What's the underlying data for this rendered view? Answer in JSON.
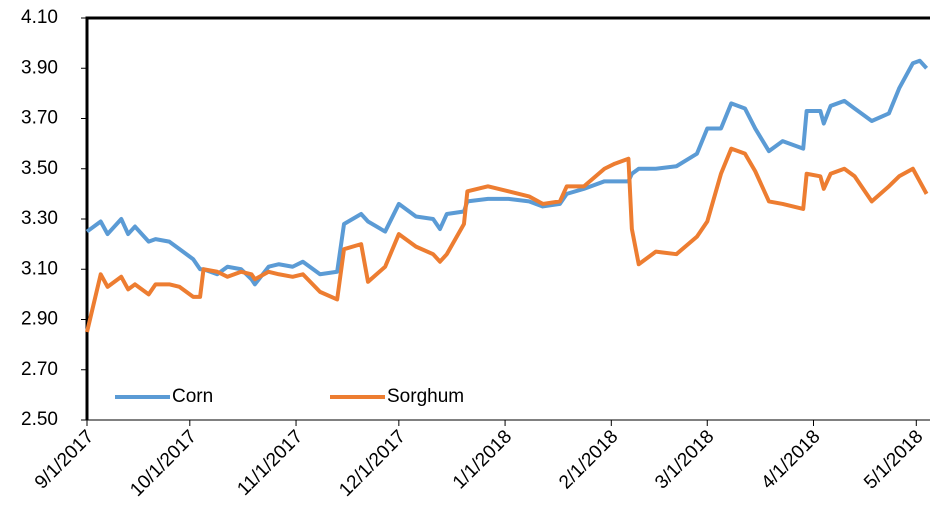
{
  "chart_data": {
    "type": "line",
    "x": [
      "9/1/2017",
      "9/5/2017",
      "9/7/2017",
      "9/11/2017",
      "9/13/2017",
      "9/15/2017",
      "9/19/2017",
      "9/21/2017",
      "9/25/2017",
      "9/28/2017",
      "10/2/2017",
      "10/4/2017",
      "10/5/2017",
      "10/9/2017",
      "10/12/2017",
      "10/16/2017",
      "10/19/2017",
      "10/20/2017",
      "10/24/2017",
      "10/27/2017",
      "10/31/2017",
      "11/3/2017",
      "11/8/2017",
      "11/13/2017",
      "11/15/2017",
      "11/20/2017",
      "11/22/2017",
      "11/27/2017",
      "12/1/2017",
      "12/6/2017",
      "12/11/2017",
      "12/13/2017",
      "12/15/2017",
      "12/20/2017",
      "12/21/2017",
      "12/27/2017",
      "1/2/2018",
      "1/8/2018",
      "1/12/2018",
      "1/17/2018",
      "1/19/2018",
      "1/24/2018",
      "1/30/2018",
      "2/2/2018",
      "2/6/2018",
      "2/7/2018",
      "2/9/2018",
      "2/14/2018",
      "2/20/2018",
      "2/26/2018",
      "3/1/2018",
      "3/5/2018",
      "3/8/2018",
      "3/12/2018",
      "3/15/2018",
      "3/19/2018",
      "3/23/2018",
      "3/29/2018",
      "3/30/2018",
      "4/3/2018",
      "4/4/2018",
      "4/6/2018",
      "4/10/2018",
      "4/13/2018",
      "4/18/2018",
      "4/23/2018",
      "4/26/2018",
      "4/30/2018",
      "5/2/2018",
      "5/4/2018"
    ],
    "series": [
      {
        "name": "Corn",
        "color": "#5b9bd5",
        "values": [
          3.25,
          3.29,
          3.24,
          3.3,
          3.24,
          3.27,
          3.21,
          3.22,
          3.21,
          3.18,
          3.14,
          3.1,
          3.1,
          3.08,
          3.11,
          3.1,
          3.06,
          3.04,
          3.11,
          3.12,
          3.11,
          3.13,
          3.08,
          3.09,
          3.28,
          3.32,
          3.29,
          3.25,
          3.36,
          3.31,
          3.3,
          3.26,
          3.32,
          3.33,
          3.37,
          3.38,
          3.38,
          3.37,
          3.35,
          3.36,
          3.4,
          3.42,
          3.45,
          3.45,
          3.45,
          3.48,
          3.5,
          3.5,
          3.51,
          3.56,
          3.66,
          3.66,
          3.76,
          3.74,
          3.66,
          3.57,
          3.61,
          3.58,
          3.73,
          3.73,
          3.68,
          3.75,
          3.77,
          3.74,
          3.69,
          3.72,
          3.82,
          3.92,
          3.93,
          3.9
        ]
      },
      {
        "name": "Sorghum",
        "color": "#ed7d31",
        "values": [
          2.85,
          3.08,
          3.03,
          3.07,
          3.02,
          3.04,
          3.0,
          3.04,
          3.04,
          3.03,
          2.99,
          2.99,
          3.1,
          3.09,
          3.07,
          3.09,
          3.08,
          3.06,
          3.09,
          3.08,
          3.07,
          3.08,
          3.01,
          2.98,
          3.18,
          3.2,
          3.05,
          3.11,
          3.24,
          3.19,
          3.16,
          3.13,
          3.16,
          3.28,
          3.41,
          3.43,
          3.41,
          3.39,
          3.36,
          3.37,
          3.43,
          3.43,
          3.5,
          3.52,
          3.54,
          3.26,
          3.12,
          3.17,
          3.16,
          3.23,
          3.29,
          3.48,
          3.58,
          3.56,
          3.49,
          3.37,
          3.36,
          3.34,
          3.48,
          3.47,
          3.42,
          3.48,
          3.5,
          3.47,
          3.37,
          3.43,
          3.47,
          3.5,
          3.45,
          3.4
        ]
      }
    ],
    "xlim": [
      "9/1/2017",
      "5/5/2018"
    ],
    "xticks": [
      "9/1/2017",
      "10/1/2017",
      "11/1/2017",
      "12/1/2017",
      "1/1/2018",
      "2/1/2018",
      "3/1/2018",
      "4/1/2018",
      "5/1/2018"
    ],
    "ylim": [
      2.5,
      4.1
    ],
    "yticks": [
      {
        "value": 2.5,
        "label": "2.50"
      },
      {
        "value": 2.7,
        "label": "2.70"
      },
      {
        "value": 2.9,
        "label": "2.90"
      },
      {
        "value": 3.1,
        "label": "3.10"
      },
      {
        "value": 3.3,
        "label": "3.30"
      },
      {
        "value": 3.5,
        "label": "3.50"
      },
      {
        "value": 3.7,
        "label": "3.70"
      },
      {
        "value": 3.9,
        "label": "3.90"
      },
      {
        "value": 4.1,
        "label": "4.10"
      }
    ],
    "legend": "lower left"
  }
}
